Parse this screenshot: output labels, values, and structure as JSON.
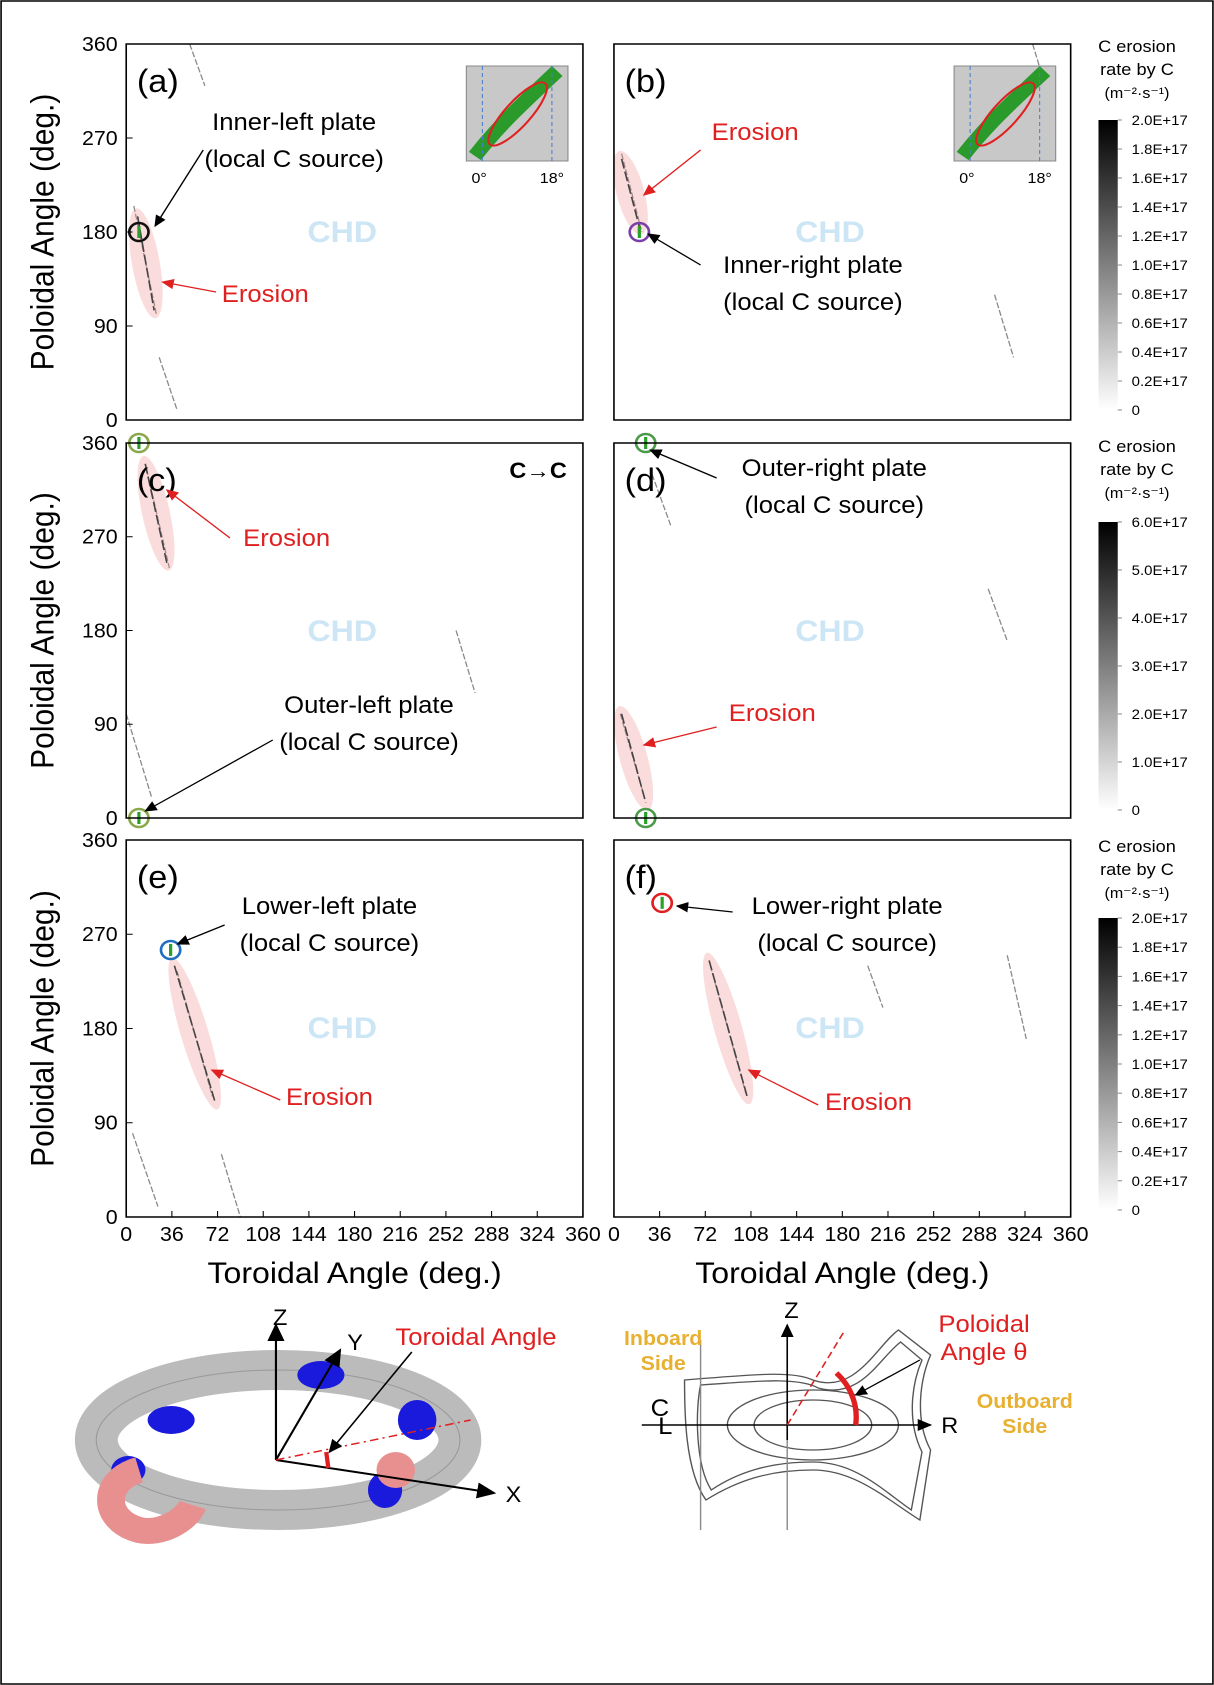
{
  "chart_data": [
    {
      "type": "heatmap",
      "panel": "(a)",
      "xlim": [
        0,
        360
      ],
      "ylim": [
        0,
        360
      ],
      "yticks": [
        0,
        90,
        180,
        270,
        360
      ],
      "ylabel": "Poloidal Angle (deg.)",
      "watermark": "CHD",
      "inset": [
        "0°",
        "18°"
      ],
      "source": {
        "x": [
          10
        ],
        "y": [
          180
        ],
        "color": "#111111"
      },
      "erosion": {
        "x": [
          9,
          22
        ],
        "y": [
          195,
          105
        ]
      },
      "streaks": [
        {
          "x": [
            6,
            24
          ],
          "y": [
            205,
            100
          ]
        },
        {
          "x": [
            26,
            40
          ],
          "y": [
            60,
            10
          ]
        },
        {
          "x": [
            50,
            62
          ],
          "y": [
            360,
            320
          ]
        }
      ],
      "source_label": [
        "Inner-left plate",
        "(local C source)"
      ],
      "erosion_label": "Erosion"
    },
    {
      "type": "heatmap",
      "panel": "(b)",
      "xlim": [
        0,
        360
      ],
      "ylim": [
        0,
        360
      ],
      "watermark": "CHD",
      "inset": [
        "0°",
        "18°"
      ],
      "source": {
        "x": [
          20
        ],
        "y": [
          180
        ],
        "color": "#7b3fa8"
      },
      "erosion": {
        "x": [
          6,
          20
        ],
        "y": [
          250,
          185
        ]
      },
      "streaks": [
        {
          "x": [
            6,
            22
          ],
          "y": [
            255,
            180
          ]
        },
        {
          "x": [
            330,
            345
          ],
          "y": [
            360,
            300
          ]
        },
        {
          "x": [
            300,
            315
          ],
          "y": [
            120,
            60
          ]
        }
      ],
      "source_label": [
        "Inner-right plate",
        "(local C source)"
      ],
      "erosion_label": "Erosion"
    },
    {
      "type": "heatmap",
      "panel": "(c)",
      "xlim": [
        0,
        360
      ],
      "ylim": [
        0,
        360
      ],
      "yticks": [
        0,
        90,
        180,
        270,
        360
      ],
      "ylabel": "Poloidal Angle (deg.)",
      "watermark": "CHD",
      "note": "C→C",
      "source": {
        "x": [
          10,
          10
        ],
        "y": [
          360,
          0
        ],
        "color": "#8aa84a"
      },
      "erosion": {
        "x": [
          15,
          32
        ],
        "y": [
          340,
          245
        ]
      },
      "streaks": [
        {
          "x": [
            16,
            34
          ],
          "y": [
            335,
            240
          ]
        },
        {
          "x": [
            0,
            20
          ],
          "y": [
            100,
            20
          ]
        },
        {
          "x": [
            260,
            275
          ],
          "y": [
            180,
            120
          ]
        }
      ],
      "source_label": [
        "Outer-left plate",
        "(local C source)"
      ],
      "erosion_label": "Erosion"
    },
    {
      "type": "heatmap",
      "panel": "(d)",
      "xlim": [
        0,
        360
      ],
      "ylim": [
        0,
        360
      ],
      "watermark": "CHD",
      "source": {
        "x": [
          25,
          25
        ],
        "y": [
          360,
          0
        ],
        "color": "#4a9a4a"
      },
      "erosion": {
        "x": [
          6,
          25
        ],
        "y": [
          100,
          15
        ]
      },
      "streaks": [
        {
          "x": [
            5,
            24
          ],
          "y": [
            100,
            20
          ]
        },
        {
          "x": [
            295,
            310
          ],
          "y": [
            220,
            170
          ]
        },
        {
          "x": [
            30,
            45
          ],
          "y": [
            330,
            280
          ]
        }
      ],
      "source_label": [
        "Outer-right plate",
        "(local C source)"
      ],
      "erosion_label": "Erosion"
    },
    {
      "type": "heatmap",
      "panel": "(e)",
      "xlim": [
        0,
        360
      ],
      "ylim": [
        0,
        360
      ],
      "xticks": [
        0,
        36,
        72,
        108,
        144,
        180,
        216,
        252,
        288,
        324,
        360
      ],
      "yticks": [
        0,
        90,
        180,
        270,
        360
      ],
      "xlabel": "Toroidal Angle (deg.)",
      "ylabel": "Poloidal Angle (deg.)",
      "watermark": "CHD",
      "source": {
        "x": [
          35
        ],
        "y": [
          255
        ],
        "color": "#1f6fc0"
      },
      "erosion": {
        "x": [
          38,
          70
        ],
        "y": [
          240,
          110
        ]
      },
      "streaks": [
        {
          "x": [
            40,
            68
          ],
          "y": [
            235,
            115
          ]
        },
        {
          "x": [
            5,
            25
          ],
          "y": [
            80,
            10
          ]
        },
        {
          "x": [
            75,
            90
          ],
          "y": [
            60,
            0
          ]
        }
      ],
      "source_label": [
        "Lower-left plate",
        "(local C source)"
      ],
      "erosion_label": "Erosion"
    },
    {
      "type": "heatmap",
      "panel": "(f)",
      "xlim": [
        0,
        360
      ],
      "ylim": [
        0,
        360
      ],
      "xticks": [
        0,
        36,
        72,
        108,
        144,
        180,
        216,
        252,
        288,
        324,
        360
      ],
      "xlabel": "Toroidal Angle (deg.)",
      "watermark": "CHD",
      "source": {
        "x": [
          38
        ],
        "y": [
          300
        ],
        "color": "#e02020"
      },
      "erosion": {
        "x": [
          75,
          105
        ],
        "y": [
          245,
          115
        ]
      },
      "streaks": [
        {
          "x": [
            76,
            104
          ],
          "y": [
            240,
            118
          ]
        },
        {
          "x": [
            310,
            325
          ],
          "y": [
            250,
            170
          ]
        },
        {
          "x": [
            200,
            212
          ],
          "y": [
            240,
            200
          ]
        }
      ],
      "source_label": [
        "Lower-right plate",
        "(local C source)"
      ],
      "erosion_label": "Erosion"
    }
  ],
  "colorbars": [
    {
      "title": [
        "C erosion",
        "rate by C",
        "(m⁻²·s⁻¹)"
      ],
      "lim": [
        0,
        2e+17
      ],
      "ticks": [
        0,
        {
          "value": 2e+16,
          "label": "0.2E+17"
        },
        {
          "value": 4e+16,
          "label": "0.4E+17"
        },
        {
          "value": 6e+16,
          "label": "0.6E+17"
        },
        {
          "value": 8e+16,
          "label": "0.8E+17"
        },
        {
          "value": 1e+17,
          "label": "1.0E+17"
        },
        {
          "value": 1.2e+17,
          "label": "1.2E+17"
        },
        {
          "value": 1.4e+17,
          "label": "1.4E+17"
        },
        {
          "value": 1.6e+17,
          "label": "1.6E+17"
        },
        {
          "value": 1.8e+17,
          "label": "1.8E+17"
        },
        {
          "value": 2e+17,
          "label": "2.0E+17"
        }
      ]
    },
    {
      "title": [
        "C erosion",
        "rate by C",
        "(m⁻²·s⁻¹)"
      ],
      "lim": [
        0,
        6e+17
      ],
      "ticks": [
        0,
        {
          "value": 1e+17,
          "label": "1.0E+17"
        },
        {
          "value": 2e+17,
          "label": "2.0E+17"
        },
        {
          "value": 3e+17,
          "label": "3.0E+17"
        },
        {
          "value": 4e+17,
          "label": "4.0E+17"
        },
        {
          "value": 5e+17,
          "label": "5.0E+17"
        },
        {
          "value": 6e+17,
          "label": "6.0E+17"
        }
      ]
    },
    {
      "title": [
        "C erosion",
        "rate by C",
        "(m⁻²·s⁻¹)"
      ],
      "lim": [
        0,
        2e+17
      ],
      "ticks": [
        0,
        {
          "value": 2e+16,
          "label": "0.2E+17"
        },
        {
          "value": 4e+16,
          "label": "0.4E+17"
        },
        {
          "value": 6e+16,
          "label": "0.6E+17"
        },
        {
          "value": 8e+16,
          "label": "0.8E+17"
        },
        {
          "value": 1e+17,
          "label": "1.0E+17"
        },
        {
          "value": 1.2e+17,
          "label": "1.2E+17"
        },
        {
          "value": 1.4e+17,
          "label": "1.4E+17"
        },
        {
          "value": 1.6e+17,
          "label": "1.6E+17"
        },
        {
          "value": 1.8e+17,
          "label": "1.8E+17"
        },
        {
          "value": 2e+17,
          "label": "2.0E+17"
        }
      ]
    }
  ],
  "diagrams": [
    {
      "labels": [
        "Z",
        "Y",
        "Toroidal Angle",
        "X"
      ]
    },
    {
      "labels": [
        "Z",
        "Poloidal",
        "Angle θ",
        "Inboard",
        "Side",
        "C",
        "L",
        "R",
        "Outboard",
        "Side"
      ]
    }
  ]
}
